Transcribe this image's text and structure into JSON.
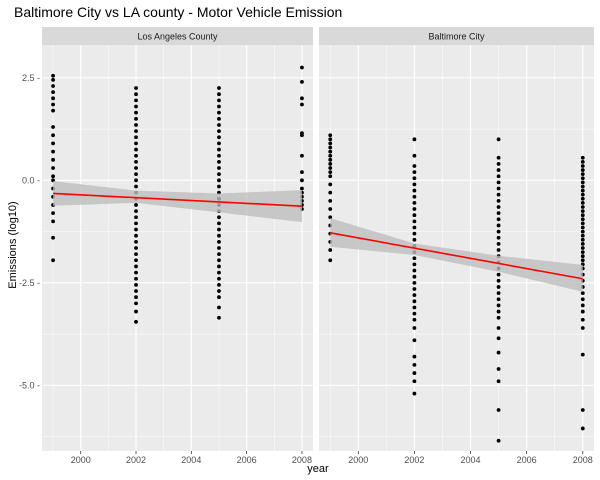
{
  "chart_data": {
    "type": "scatter",
    "title": "Baltimore City vs LA county - Motor Vehicle Emission",
    "xlabel": "year",
    "ylabel": "Emissions (log10)",
    "xlim": [
      1998.6,
      2008.4
    ],
    "ylim": [
      -6.6,
      3.3
    ],
    "x_ticks": [
      2000,
      2002,
      2004,
      2006,
      2008
    ],
    "x_tick_labels": [
      "2000",
      "2002",
      "2004",
      "2006",
      "2008"
    ],
    "y_ticks": [
      2.5,
      0,
      -2.5,
      -5
    ],
    "y_tick_labels": [
      "2.5 -",
      "0.0 -",
      "-2.5 -",
      "-5.0 -"
    ],
    "grid": true,
    "colors": {
      "panel_bg": "#EBEBEB",
      "strip_bg": "#D9D9D9",
      "grid": "#FFFFFF",
      "points": "#000000",
      "trend": "#FF0000",
      "ribbon": "#BEBEBE"
    },
    "panels": [
      {
        "name": "Los Angeles County",
        "points": [
          [
            1999,
            2.55
          ],
          [
            1999,
            2.45
          ],
          [
            1999,
            2.3
          ],
          [
            1999,
            2.15
          ],
          [
            1999,
            2.0
          ],
          [
            1999,
            1.85
          ],
          [
            1999,
            1.7
          ],
          [
            1999,
            1.3
          ],
          [
            1999,
            1.1
          ],
          [
            1999,
            0.9
          ],
          [
            1999,
            0.7
          ],
          [
            1999,
            0.5
          ],
          [
            1999,
            0.3
          ],
          [
            1999,
            0.1
          ],
          [
            1999,
            0.0
          ],
          [
            1999,
            -0.2
          ],
          [
            1999,
            -0.4
          ],
          [
            1999,
            -0.6
          ],
          [
            1999,
            -0.8
          ],
          [
            1999,
            -1.0
          ],
          [
            1999,
            -1.4
          ],
          [
            1999,
            -1.95
          ],
          [
            2002,
            2.25
          ],
          [
            2002,
            2.1
          ],
          [
            2002,
            1.95
          ],
          [
            2002,
            1.8
          ],
          [
            2002,
            1.65
          ],
          [
            2002,
            1.5
          ],
          [
            2002,
            1.35
          ],
          [
            2002,
            1.2
          ],
          [
            2002,
            1.05
          ],
          [
            2002,
            0.9
          ],
          [
            2002,
            0.75
          ],
          [
            2002,
            0.6
          ],
          [
            2002,
            0.45
          ],
          [
            2002,
            0.3
          ],
          [
            2002,
            0.15
          ],
          [
            2002,
            0.0
          ],
          [
            2002,
            -0.15
          ],
          [
            2002,
            -0.3
          ],
          [
            2002,
            -0.45
          ],
          [
            2002,
            -0.6
          ],
          [
            2002,
            -0.75
          ],
          [
            2002,
            -0.9
          ],
          [
            2002,
            -1.05
          ],
          [
            2002,
            -1.2
          ],
          [
            2002,
            -1.35
          ],
          [
            2002,
            -1.5
          ],
          [
            2002,
            -1.65
          ],
          [
            2002,
            -1.8
          ],
          [
            2002,
            -1.95
          ],
          [
            2002,
            -2.1
          ],
          [
            2002,
            -2.25
          ],
          [
            2002,
            -2.4
          ],
          [
            2002,
            -2.55
          ],
          [
            2002,
            -2.7
          ],
          [
            2002,
            -2.85
          ],
          [
            2002,
            -3.0
          ],
          [
            2002,
            -3.2
          ],
          [
            2002,
            -3.45
          ],
          [
            2005,
            2.25
          ],
          [
            2005,
            2.1
          ],
          [
            2005,
            1.95
          ],
          [
            2005,
            1.8
          ],
          [
            2005,
            1.65
          ],
          [
            2005,
            1.5
          ],
          [
            2005,
            1.35
          ],
          [
            2005,
            1.2
          ],
          [
            2005,
            1.05
          ],
          [
            2005,
            0.9
          ],
          [
            2005,
            0.75
          ],
          [
            2005,
            0.6
          ],
          [
            2005,
            0.45
          ],
          [
            2005,
            0.3
          ],
          [
            2005,
            0.15
          ],
          [
            2005,
            0.0
          ],
          [
            2005,
            -0.15
          ],
          [
            2005,
            -0.3
          ],
          [
            2005,
            -0.45
          ],
          [
            2005,
            -0.6
          ],
          [
            2005,
            -0.75
          ],
          [
            2005,
            -0.9
          ],
          [
            2005,
            -1.05
          ],
          [
            2005,
            -1.2
          ],
          [
            2005,
            -1.35
          ],
          [
            2005,
            -1.5
          ],
          [
            2005,
            -1.65
          ],
          [
            2005,
            -1.8
          ],
          [
            2005,
            -1.95
          ],
          [
            2005,
            -2.1
          ],
          [
            2005,
            -2.25
          ],
          [
            2005,
            -2.4
          ],
          [
            2005,
            -2.55
          ],
          [
            2005,
            -2.7
          ],
          [
            2005,
            -2.85
          ],
          [
            2005,
            -3.1
          ],
          [
            2005,
            -3.35
          ],
          [
            2008,
            2.75
          ],
          [
            2008,
            2.4
          ],
          [
            2008,
            2.0
          ],
          [
            2008,
            1.85
          ],
          [
            2008,
            1.15
          ],
          [
            2008,
            1.1
          ],
          [
            2008,
            0.6
          ],
          [
            2008,
            0.2
          ],
          [
            2008,
            0.0
          ],
          [
            2008,
            -0.2
          ],
          [
            2008,
            -0.3
          ],
          [
            2008,
            -0.4
          ],
          [
            2008,
            -0.5
          ],
          [
            2008,
            -0.6
          ],
          [
            2008,
            -0.7
          ]
        ],
        "trend": {
          "x": [
            1999,
            2008
          ],
          "y": [
            -0.32,
            -0.63
          ]
        },
        "ribbon": {
          "x": [
            1999,
            2002,
            2005,
            2008
          ],
          "lower": [
            -0.62,
            -0.55,
            -0.78,
            -1.02
          ],
          "upper": [
            -0.02,
            -0.25,
            -0.32,
            -0.24
          ]
        }
      },
      {
        "name": "Baltimore City",
        "points": [
          [
            1999,
            1.1
          ],
          [
            1999,
            1.0
          ],
          [
            1999,
            0.9
          ],
          [
            1999,
            0.8
          ],
          [
            1999,
            0.7
          ],
          [
            1999,
            0.6
          ],
          [
            1999,
            0.5
          ],
          [
            1999,
            0.4
          ],
          [
            1999,
            0.3
          ],
          [
            1999,
            0.2
          ],
          [
            1999,
            0.1
          ],
          [
            1999,
            -0.1
          ],
          [
            1999,
            -0.3
          ],
          [
            1999,
            -0.5
          ],
          [
            1999,
            -0.7
          ],
          [
            1999,
            -0.9
          ],
          [
            1999,
            -1.1
          ],
          [
            1999,
            -1.3
          ],
          [
            1999,
            -1.5
          ],
          [
            1999,
            -1.7
          ],
          [
            1999,
            -1.95
          ],
          [
            2002,
            1.0
          ],
          [
            2002,
            0.6
          ],
          [
            2002,
            0.35
          ],
          [
            2002,
            0.2
          ],
          [
            2002,
            0.05
          ],
          [
            2002,
            -0.1
          ],
          [
            2002,
            -0.25
          ],
          [
            2002,
            -0.4
          ],
          [
            2002,
            -0.55
          ],
          [
            2002,
            -0.7
          ],
          [
            2002,
            -0.85
          ],
          [
            2002,
            -1.0
          ],
          [
            2002,
            -1.15
          ],
          [
            2002,
            -1.3
          ],
          [
            2002,
            -1.45
          ],
          [
            2002,
            -1.6
          ],
          [
            2002,
            -1.75
          ],
          [
            2002,
            -1.9
          ],
          [
            2002,
            -2.05
          ],
          [
            2002,
            -2.2
          ],
          [
            2002,
            -2.35
          ],
          [
            2002,
            -2.5
          ],
          [
            2002,
            -2.65
          ],
          [
            2002,
            -2.8
          ],
          [
            2002,
            -2.95
          ],
          [
            2002,
            -3.1
          ],
          [
            2002,
            -3.25
          ],
          [
            2002,
            -3.4
          ],
          [
            2002,
            -3.6
          ],
          [
            2002,
            -3.9
          ],
          [
            2002,
            -4.3
          ],
          [
            2002,
            -4.5
          ],
          [
            2002,
            -4.7
          ],
          [
            2002,
            -4.9
          ],
          [
            2002,
            -5.2
          ],
          [
            2005,
            1.0
          ],
          [
            2005,
            0.55
          ],
          [
            2005,
            0.4
          ],
          [
            2005,
            0.25
          ],
          [
            2005,
            0.1
          ],
          [
            2005,
            -0.05
          ],
          [
            2005,
            -0.2
          ],
          [
            2005,
            -0.35
          ],
          [
            2005,
            -0.5
          ],
          [
            2005,
            -0.65
          ],
          [
            2005,
            -0.8
          ],
          [
            2005,
            -0.95
          ],
          [
            2005,
            -1.1
          ],
          [
            2005,
            -1.25
          ],
          [
            2005,
            -1.4
          ],
          [
            2005,
            -1.55
          ],
          [
            2005,
            -1.7
          ],
          [
            2005,
            -1.85
          ],
          [
            2005,
            -2.0
          ],
          [
            2005,
            -2.15
          ],
          [
            2005,
            -2.3
          ],
          [
            2005,
            -2.45
          ],
          [
            2005,
            -2.6
          ],
          [
            2005,
            -2.75
          ],
          [
            2005,
            -2.9
          ],
          [
            2005,
            -3.05
          ],
          [
            2005,
            -3.2
          ],
          [
            2005,
            -3.35
          ],
          [
            2005,
            -3.6
          ],
          [
            2005,
            -3.85
          ],
          [
            2005,
            -4.2
          ],
          [
            2005,
            -4.6
          ],
          [
            2005,
            -4.9
          ],
          [
            2005,
            -5.6
          ],
          [
            2005,
            -6.35
          ],
          [
            2008,
            0.55
          ],
          [
            2008,
            0.45
          ],
          [
            2008,
            0.35
          ],
          [
            2008,
            0.25
          ],
          [
            2008,
            0.15
          ],
          [
            2008,
            0.05
          ],
          [
            2008,
            -0.05
          ],
          [
            2008,
            -0.15
          ],
          [
            2008,
            -0.25
          ],
          [
            2008,
            -0.35
          ],
          [
            2008,
            -0.45
          ],
          [
            2008,
            -0.55
          ],
          [
            2008,
            -0.65
          ],
          [
            2008,
            -0.75
          ],
          [
            2008,
            -0.85
          ],
          [
            2008,
            -0.95
          ],
          [
            2008,
            -1.05
          ],
          [
            2008,
            -1.15
          ],
          [
            2008,
            -1.25
          ],
          [
            2008,
            -1.35
          ],
          [
            2008,
            -1.45
          ],
          [
            2008,
            -1.55
          ],
          [
            2008,
            -1.65
          ],
          [
            2008,
            -1.75
          ],
          [
            2008,
            -1.85
          ],
          [
            2008,
            -1.95
          ],
          [
            2008,
            -2.05
          ],
          [
            2008,
            -2.15
          ],
          [
            2008,
            -2.3
          ],
          [
            2008,
            -2.45
          ],
          [
            2008,
            -2.6
          ],
          [
            2008,
            -2.75
          ],
          [
            2008,
            -2.9
          ],
          [
            2008,
            -3.05
          ],
          [
            2008,
            -3.2
          ],
          [
            2008,
            -3.4
          ],
          [
            2008,
            -3.6
          ],
          [
            2008,
            -4.25
          ],
          [
            2008,
            -5.6
          ],
          [
            2008,
            -6.05
          ]
        ],
        "trend": {
          "x": [
            1999,
            2008
          ],
          "y": [
            -1.28,
            -2.4
          ]
        },
        "ribbon": {
          "x": [
            1999,
            2002,
            2005,
            2008
          ],
          "lower": [
            -1.62,
            -1.82,
            -2.23,
            -2.72
          ],
          "upper": [
            -0.92,
            -1.54,
            -1.84,
            -2.06
          ]
        }
      }
    ]
  }
}
